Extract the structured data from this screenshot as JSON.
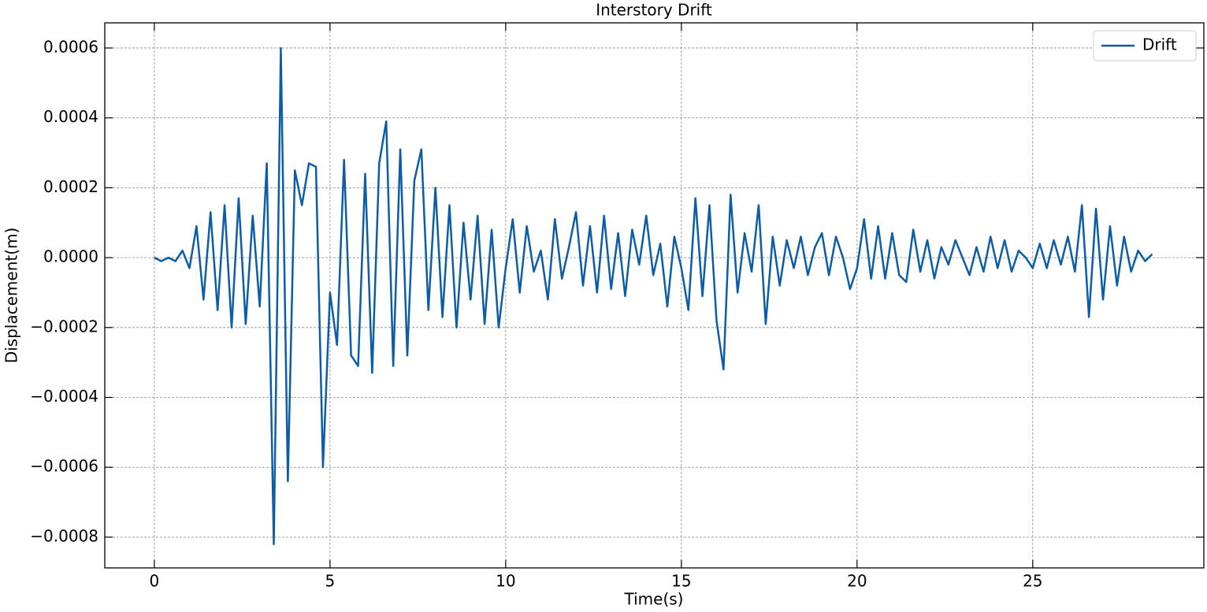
{
  "chart_data": {
    "type": "line",
    "title": "Interstory Drift",
    "x_label": "Time(s)",
    "y_label": "Displacement(m)",
    "xlim": [
      -1.41,
      29.87
    ],
    "ylim": [
      -0.000888,
      0.000672
    ],
    "xticks": [
      0,
      5,
      10,
      15,
      20,
      25
    ],
    "yticks": [
      {
        "value": -0.0008,
        "label": "−0.0008"
      },
      {
        "value": -0.0006,
        "label": "−0.0006"
      },
      {
        "value": -0.0004,
        "label": "−0.0004"
      },
      {
        "value": -0.0002,
        "label": "−0.0002"
      },
      {
        "value": 0,
        "label": "0.0000"
      },
      0.0002,
      0.0004,
      0.0006
    ],
    "grid": true,
    "legend": "upper right",
    "x": [
      0,
      0.2,
      0.4,
      0.6,
      0.8,
      1,
      1.2,
      1.4,
      1.6,
      1.8,
      2,
      2.2,
      2.4,
      2.6,
      2.8,
      3,
      3.2,
      3.4,
      3.6,
      3.8,
      4,
      4.2,
      4.4,
      4.6,
      4.8,
      5,
      5.2,
      5.4,
      5.6,
      5.8,
      6,
      6.2,
      6.4,
      6.6,
      6.8,
      7,
      7.2,
      7.4,
      7.6,
      7.8,
      8,
      8.2,
      8.4,
      8.6,
      8.8,
      9,
      9.2,
      9.4,
      9.6,
      9.8,
      10,
      10.2,
      10.4,
      10.6,
      10.8,
      11,
      11.2,
      11.4,
      11.6,
      11.8,
      12,
      12.2,
      12.4,
      12.6,
      12.8,
      13,
      13.2,
      13.4,
      13.6,
      13.8,
      14,
      14.2,
      14.4,
      14.6,
      14.8,
      15,
      15.2,
      15.4,
      15.6,
      15.8,
      16,
      16.2,
      16.4,
      16.6,
      16.8,
      17,
      17.2,
      17.4,
      17.6,
      17.8,
      18,
      18.2,
      18.4,
      18.6,
      18.8,
      19,
      19.2,
      19.4,
      19.6,
      19.8,
      20,
      20.2,
      20.4,
      20.6,
      20.8,
      21,
      21.2,
      21.4,
      21.6,
      21.8,
      22,
      22.2,
      22.4,
      22.6,
      22.8,
      23,
      23.2,
      23.4,
      23.6,
      23.8,
      24,
      24.2,
      24.4,
      24.6,
      24.8,
      25,
      25.2,
      25.4,
      25.6,
      25.8,
      26,
      26.2,
      26.4,
      26.6,
      26.8,
      27,
      27.2,
      27.4,
      27.6,
      27.8,
      28,
      28.2,
      28.4
    ],
    "series": [
      {
        "name": "Drift",
        "color": "#0c5da5",
        "values": [
          0,
          -1e-05,
          0,
          -1e-05,
          2e-05,
          -3e-05,
          9e-05,
          -0.00012,
          0.00013,
          -0.00015,
          0.00015,
          -0.0002,
          0.00017,
          -0.00019,
          0.00012,
          -0.00014,
          0.00027,
          -0.00082,
          0.0006,
          -0.00064,
          0.00025,
          0.00015,
          0.00027,
          0.00026,
          -0.0006,
          -0.0001,
          -0.00025,
          0.00028,
          -0.00028,
          -0.00031,
          0.00024,
          -0.00033,
          0.00027,
          0.00039,
          -0.00031,
          0.00031,
          -0.00028,
          0.00022,
          0.00031,
          -0.00015,
          0.0002,
          -0.00017,
          0.00015,
          -0.0002,
          0.0001,
          -0.00012,
          0.00012,
          -0.00019,
          8e-05,
          -0.0002,
          -3e-05,
          0.00011,
          -0.0001,
          9e-05,
          -4e-05,
          2e-05,
          -0.00012,
          0.00011,
          -6e-05,
          3e-05,
          0.00013,
          -8e-05,
          9e-05,
          -0.0001,
          0.00012,
          -9e-05,
          7e-05,
          -0.00011,
          8e-05,
          -2e-05,
          0.00012,
          -5e-05,
          4e-05,
          -0.00014,
          6e-05,
          -3e-05,
          -0.00015,
          0.00017,
          -0.00011,
          0.00015,
          -0.00018,
          -0.00032,
          0.00018,
          -0.0001,
          7e-05,
          -4e-05,
          0.00015,
          -0.00019,
          6e-05,
          -8e-05,
          5e-05,
          -3e-05,
          6e-05,
          -5e-05,
          3e-05,
          7e-05,
          -5e-05,
          6e-05,
          0,
          -9e-05,
          -3e-05,
          0.00011,
          -6e-05,
          9e-05,
          -6e-05,
          7e-05,
          -5e-05,
          -7e-05,
          8e-05,
          -4e-05,
          5e-05,
          -6e-05,
          3e-05,
          -2e-05,
          5e-05,
          0,
          -5e-05,
          3e-05,
          -4e-05,
          6e-05,
          -3e-05,
          5e-05,
          -4e-05,
          2e-05,
          0,
          -3e-05,
          4e-05,
          -3e-05,
          5e-05,
          -2e-05,
          6e-05,
          -4e-05,
          0.00015,
          -0.00017,
          0.00014,
          -0.00012,
          9e-05,
          -8e-05,
          6e-05,
          -4e-05,
          2e-05,
          -1e-05,
          1e-05
        ]
      }
    ]
  }
}
